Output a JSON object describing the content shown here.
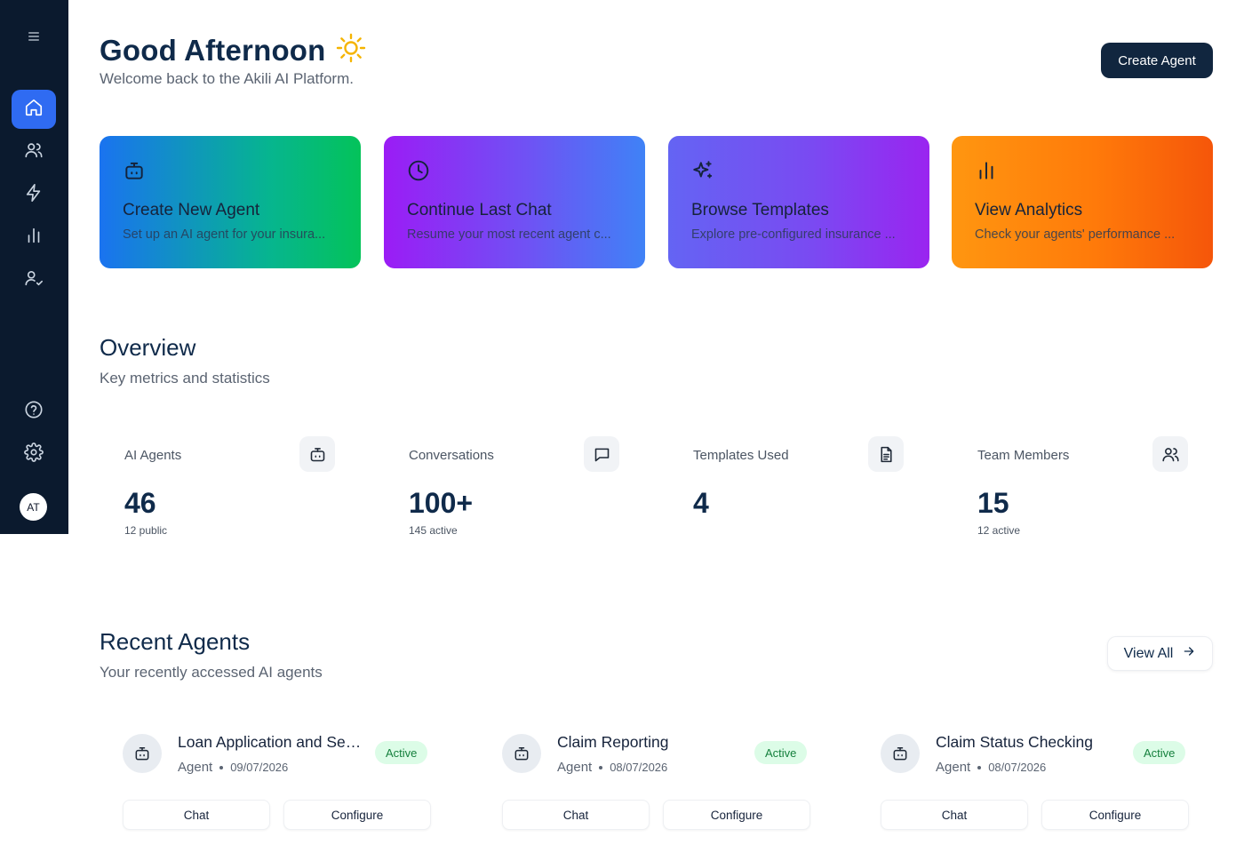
{
  "sidebar": {
    "items": [
      {
        "name": "menu-icon"
      },
      {
        "name": "home-icon",
        "active": true
      },
      {
        "name": "users-icon"
      },
      {
        "name": "zap-icon"
      },
      {
        "name": "analytics-icon"
      },
      {
        "name": "user-check-icon"
      },
      {
        "name": "help-icon"
      },
      {
        "name": "gear-icon"
      }
    ],
    "avatar_initials": "AT"
  },
  "header": {
    "greeting": "Good Afternoon",
    "welcome": "Welcome back to the Akili AI Platform.",
    "create_agent_label": "Create Agent"
  },
  "quick_actions": [
    {
      "title": "Create New Agent",
      "subtitle": "Set up an AI agent for your insura...",
      "icon": "bot-icon"
    },
    {
      "title": "Continue Last Chat",
      "subtitle": "Resume your most recent agent c...",
      "icon": "clock-icon"
    },
    {
      "title": "Browse Templates",
      "subtitle": "Explore pre-configured insurance ...",
      "icon": "sparkles-icon"
    },
    {
      "title": "View Analytics",
      "subtitle": "Check your agents' performance ...",
      "icon": "bar-chart-icon"
    }
  ],
  "overview": {
    "title": "Overview",
    "subtitle": "Key metrics and statistics",
    "stats": [
      {
        "label": "AI Agents",
        "value": "46",
        "note": "12 public",
        "icon": "bot-icon"
      },
      {
        "label": "Conversations",
        "value": "100+",
        "note": "145 active",
        "icon": "message-icon"
      },
      {
        "label": "Templates Used",
        "value": "4",
        "note": "",
        "icon": "document-icon"
      },
      {
        "label": "Team Members",
        "value": "15",
        "note": "12 active",
        "icon": "users-icon"
      }
    ]
  },
  "recent_agents": {
    "title": "Recent Agents",
    "subtitle": "Your recently accessed AI agents",
    "view_all_label": "View All",
    "agents": [
      {
        "name": "Loan Application and Ser...",
        "type": "Agent",
        "date": "09/07/2026",
        "status": "Active",
        "chat_label": "Chat",
        "configure_label": "Configure"
      },
      {
        "name": "Claim Reporting",
        "type": "Agent",
        "date": "08/07/2026",
        "status": "Active",
        "chat_label": "Chat",
        "configure_label": "Configure"
      },
      {
        "name": "Claim Status Checking",
        "type": "Agent",
        "date": "08/07/2026",
        "status": "Active",
        "chat_label": "Chat",
        "configure_label": "Configure"
      }
    ]
  },
  "colors": {
    "sidebar_bg": "#0b1a2e",
    "accent": "#2f6bf2",
    "primary_button": "#11263f",
    "active_badge_bg": "#dcfce7",
    "active_badge_text": "#15803d"
  }
}
